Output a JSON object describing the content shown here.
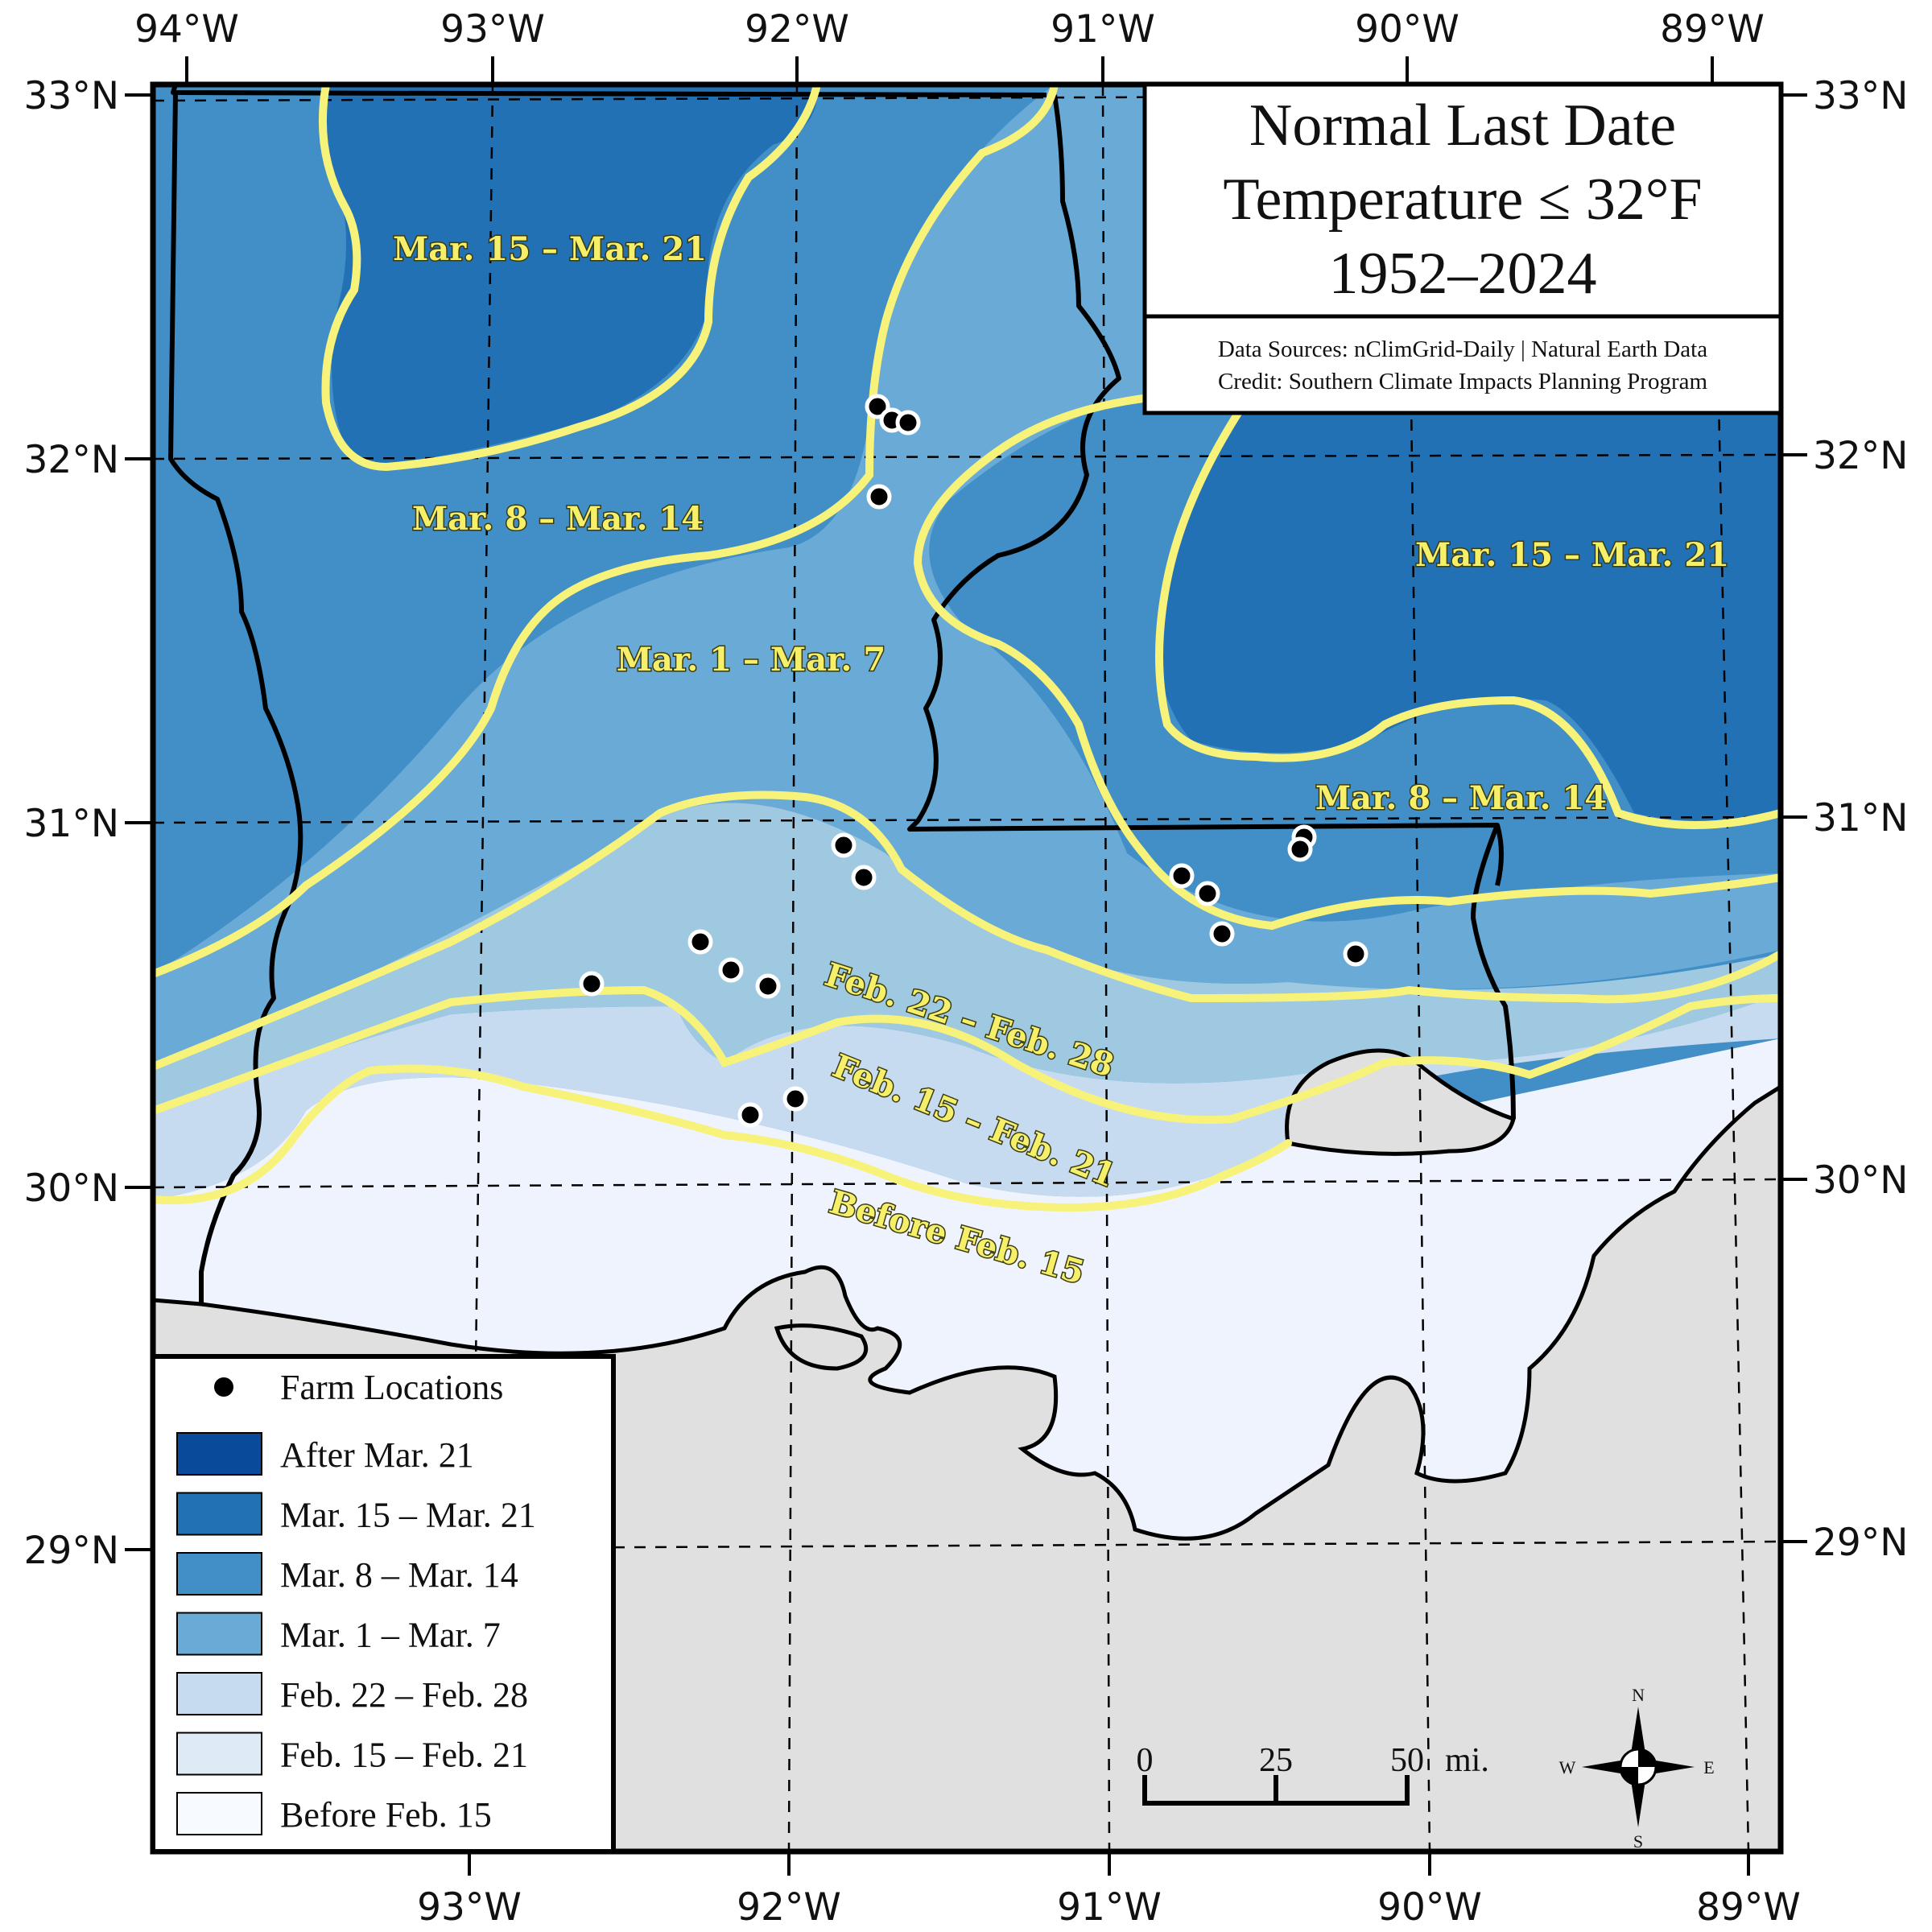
{
  "title": {
    "line1": "Normal Last Date",
    "line2": "Temperature ≤ 32°F",
    "line3": "1952–2024"
  },
  "sources": {
    "line1": "Data Sources: nClimGrid-Daily | Natural Earth Data",
    "line2": "Credit: Southern Climate Impacts Planning Program"
  },
  "top_axis": [
    "94°W",
    "93°W",
    "92°W",
    "91°W",
    "90°W",
    "89°W"
  ],
  "bottom_axis": [
    "93°W",
    "92°W",
    "91°W",
    "90°W",
    "89°W"
  ],
  "left_axis": [
    "33°N",
    "32°N",
    "31°N",
    "30°N",
    "29°N"
  ],
  "right_axis": [
    "33°N",
    "32°N",
    "31°N",
    "30°N",
    "29°N"
  ],
  "legend": {
    "farm_label": "Farm Locations",
    "items": [
      {
        "label": "After Mar. 21",
        "color": "#0a4a9a"
      },
      {
        "label": "Mar. 15 – Mar. 21",
        "color": "#2371b5"
      },
      {
        "label": "Mar. 8 – Mar. 14",
        "color": "#418fc6"
      },
      {
        "label": "Mar. 1 – Mar. 7",
        "color": "#69abd6"
      },
      {
        "label": "Feb. 22 – Feb. 28",
        "color": "#c6dbef"
      },
      {
        "label": "Feb. 15 – Feb. 21",
        "color": "#deebf7"
      },
      {
        "label": "Before Feb. 15",
        "color": "#f7fbff"
      }
    ]
  },
  "isoline_labels": [
    "Mar. 15 – Mar. 21",
    "Mar. 8 – Mar. 14",
    "Mar. 1 – Mar. 7",
    "Mar. 15 – Mar. 21",
    "Mar. 8 – Mar. 14",
    "Feb. 22 – Feb. 28",
    "Feb. 15 – Feb. 21",
    "Before Feb. 15"
  ],
  "scale_bar": {
    "labels": [
      "0",
      "25",
      "50"
    ],
    "unit": "mi."
  },
  "compass": {
    "n": "N",
    "s": "S",
    "e": "E",
    "w": "W"
  },
  "colors": {
    "isoline": "#f7f27a",
    "water": "#e0e0e0",
    "border": "#000000"
  }
}
